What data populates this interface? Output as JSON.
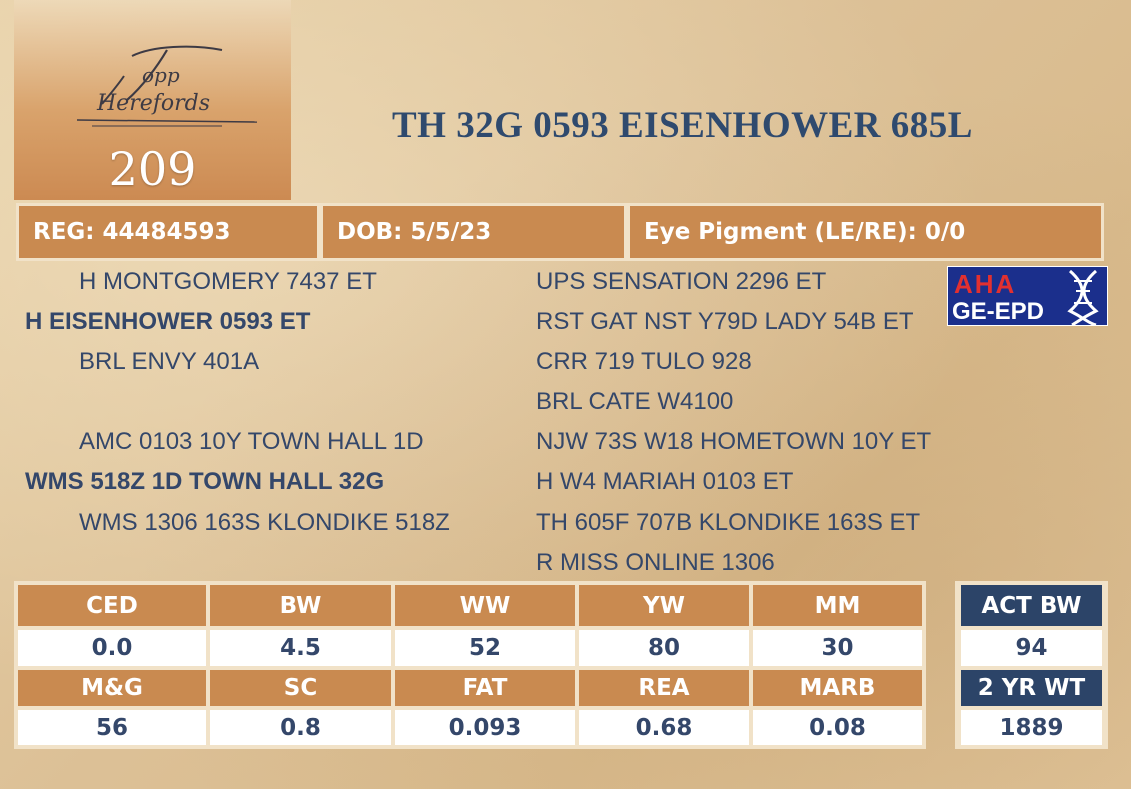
{
  "logo": {
    "text": "Topp Herefords"
  },
  "lot_number": "209",
  "animal_name": "TH 32G 0593 EISENHOWER 685L",
  "info": {
    "reg": "REG: 44484593",
    "dob": "DOB: 5/5/23",
    "eye": "Eye Pigment (LE/RE): 0/0"
  },
  "badge": {
    "line1": "AHA",
    "line2": "GE-EPD"
  },
  "pedigree": {
    "sire_sire": "H MONTGOMERY 7437 ET",
    "sire": "H EISENHOWER 0593 ET",
    "sire_dam": "BRL ENVY 401A",
    "dam_sire": "AMC 0103 10Y TOWN HALL 1D",
    "dam": "WMS 518Z 1D TOWN HALL 32G",
    "dam_dam": "WMS 1306 163S KLONDIKE 518Z",
    "col3": [
      "UPS SENSATION 2296 ET",
      "RST GAT NST Y79D LADY 54B ET",
      "CRR 719 TULO 928",
      "BRL CATE W4100",
      "NJW 73S W18 HOMETOWN 10Y ET",
      "H W4 MARIAH 0103 ET",
      "TH 605F 707B KLONDIKE 163S ET",
      "R MISS ONLINE 1306"
    ]
  },
  "epd": {
    "row1": {
      "headers": [
        "CED",
        "BW",
        "WW",
        "YW",
        "MM"
      ],
      "values": [
        "0.0",
        "4.5",
        "52",
        "80",
        "30"
      ]
    },
    "row2": {
      "headers": [
        "M&G",
        "SC",
        "FAT",
        "REA",
        "MARB"
      ],
      "values": [
        "56",
        "0.8",
        "0.093",
        "0.68",
        "0.08"
      ]
    }
  },
  "actuals": {
    "act_bw_label": "ACT BW",
    "act_bw_value": "94",
    "yr_wt_label": "2 YR WT",
    "yr_wt_value": "1889"
  },
  "colors": {
    "tan": "#c98a50",
    "navy": "#2c4468",
    "text_blue": "#34476a",
    "title_blue": "#2f4a6e"
  }
}
